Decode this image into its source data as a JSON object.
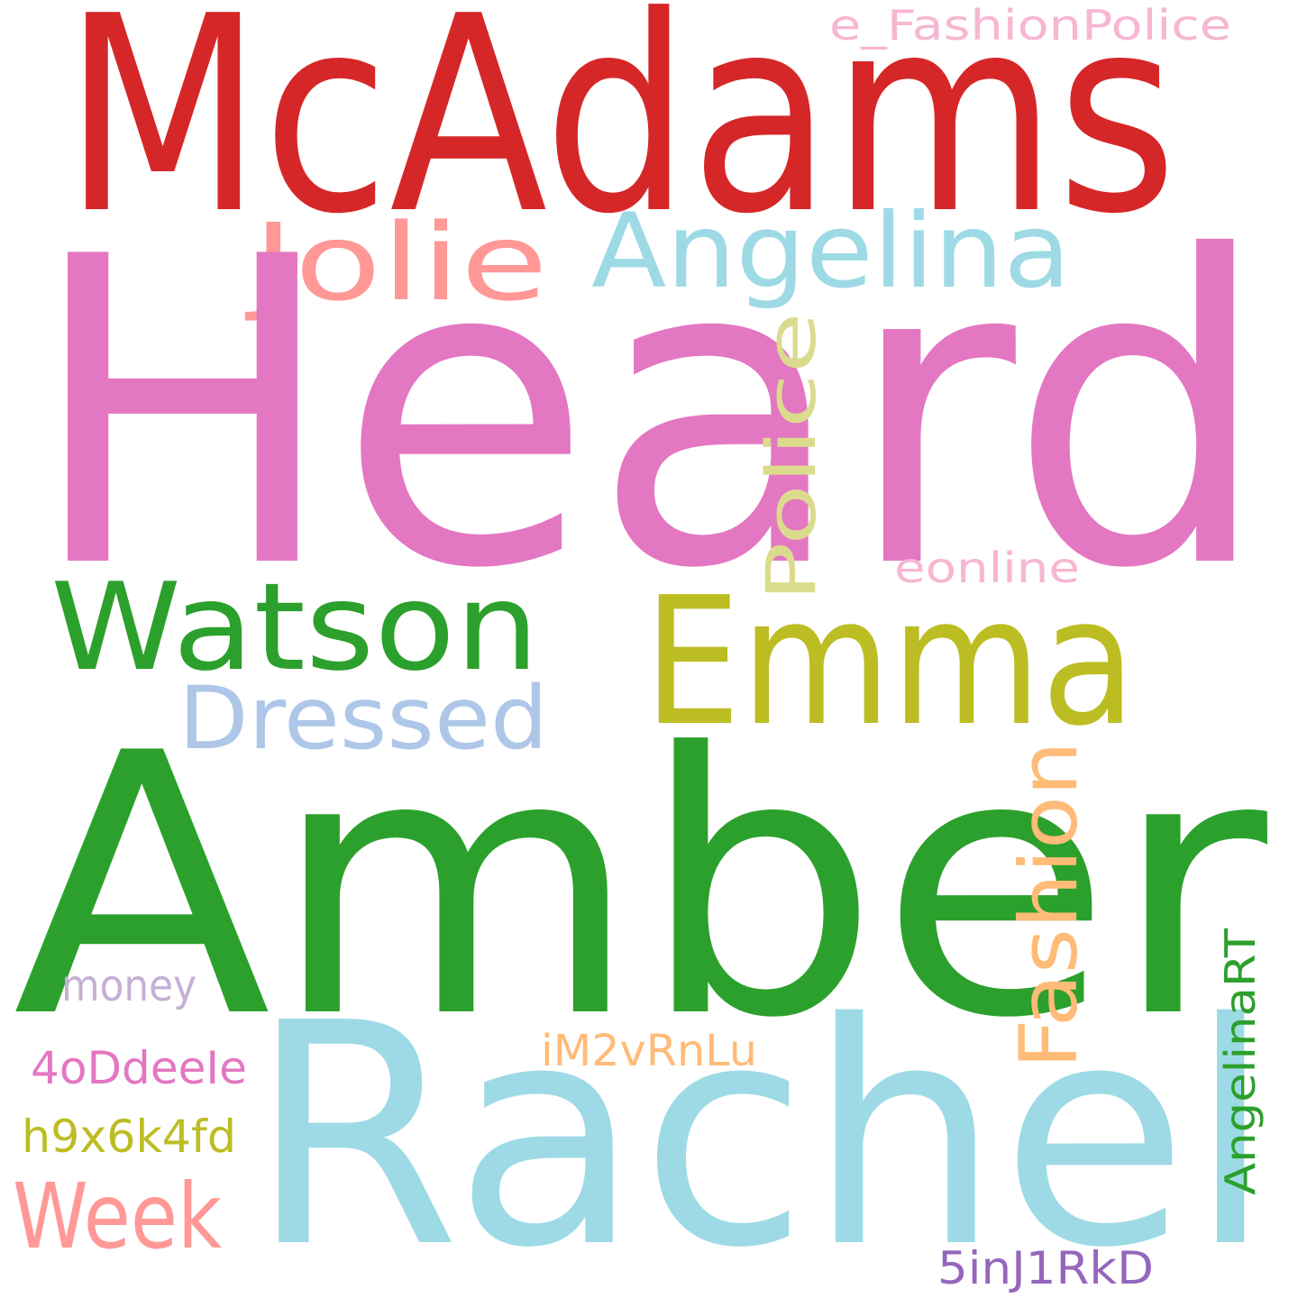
{
  "word_cloud": {
    "background": "#ffffff",
    "words": [
      {
        "text": "McAdams",
        "color": "#d62728",
        "orientation": "horizontal"
      },
      {
        "text": "e_FashionPolice",
        "color": "#f7b6d2",
        "orientation": "horizontal"
      },
      {
        "text": "Jolie",
        "color": "#ff9896",
        "orientation": "horizontal"
      },
      {
        "text": "Angelina",
        "color": "#9edae5",
        "orientation": "horizontal"
      },
      {
        "text": "Heard",
        "color": "#e377c2",
        "orientation": "horizontal"
      },
      {
        "text": "Police",
        "color": "#dbdb8d",
        "orientation": "vertical"
      },
      {
        "text": "eonline",
        "color": "#f7b6d2",
        "orientation": "horizontal"
      },
      {
        "text": "Watson",
        "color": "#2ca02c",
        "orientation": "horizontal"
      },
      {
        "text": "Emma",
        "color": "#bcbd22",
        "orientation": "horizontal"
      },
      {
        "text": "Dressed",
        "color": "#aec7e8",
        "orientation": "horizontal"
      },
      {
        "text": "Fashion",
        "color": "#ffbb78",
        "orientation": "vertical"
      },
      {
        "text": "Amber",
        "color": "#2ca02c",
        "orientation": "horizontal"
      },
      {
        "text": "money",
        "color": "#c5b0d5",
        "orientation": "horizontal"
      },
      {
        "text": "AngelinaRT",
        "color": "#2ca02c",
        "orientation": "vertical"
      },
      {
        "text": "iM2vRnLu",
        "color": "#ffbb78",
        "orientation": "horizontal"
      },
      {
        "text": "4oDdeeIe",
        "color": "#e377c2",
        "orientation": "horizontal"
      },
      {
        "text": "Rachel",
        "color": "#9edae5",
        "orientation": "horizontal"
      },
      {
        "text": "h9x6k4fd",
        "color": "#bcbd22",
        "orientation": "horizontal"
      },
      {
        "text": "Week",
        "color": "#ff9896",
        "orientation": "horizontal"
      },
      {
        "text": "5inJ1RkD",
        "color": "#9467bd",
        "orientation": "horizontal"
      }
    ]
  }
}
